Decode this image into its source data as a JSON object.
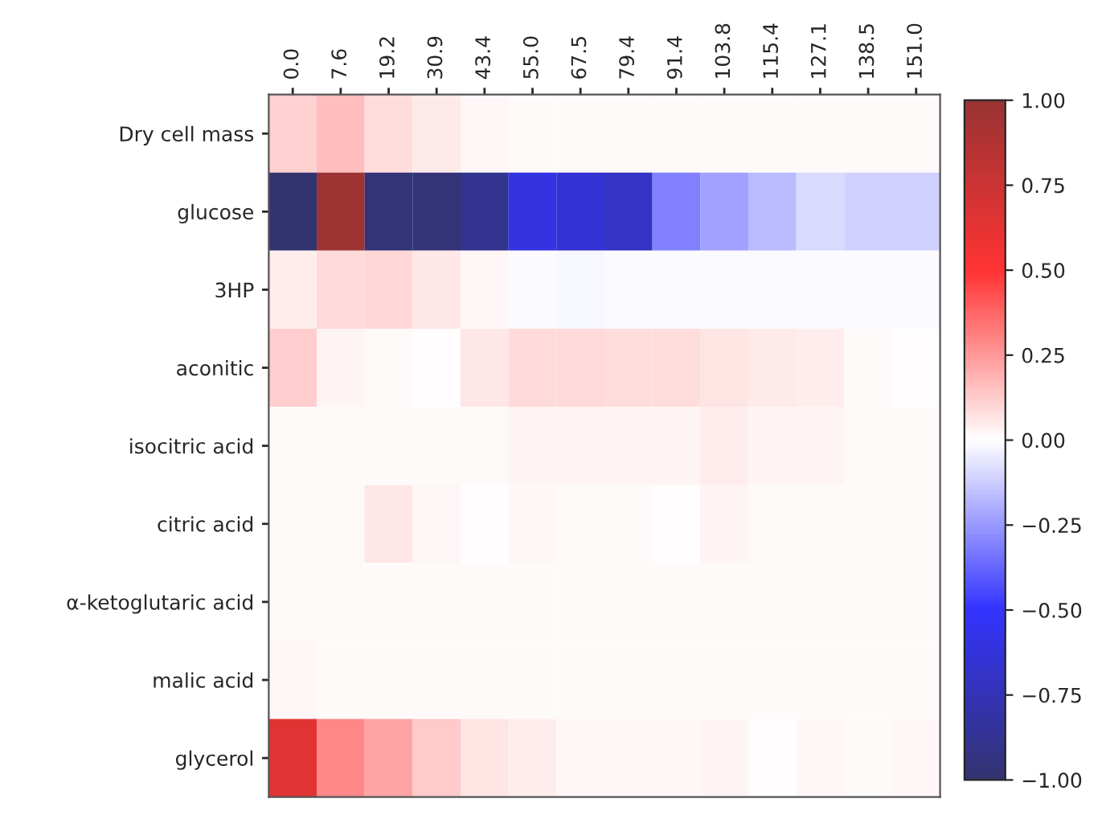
{
  "chart_data": {
    "type": "heatmap",
    "categories": [
      "0.0",
      "7.6",
      "19.2",
      "30.9",
      "43.4",
      "55.0",
      "67.5",
      "79.4",
      "91.4",
      "103.8",
      "115.4",
      "127.1",
      "138.5",
      "151.0"
    ],
    "y_categories": [
      "Dry cell mass",
      "glucose",
      "3HP",
      "aconitic",
      "isocitric acid",
      "citric acid",
      "α-ketoglutaric acid",
      "malic acid",
      "glycerol"
    ],
    "cells": [
      [
        0.11,
        0.16,
        0.08,
        0.05,
        0.02,
        0.01,
        0.01,
        0.01,
        0.01,
        0.01,
        0.01,
        0.01,
        0.01,
        0.01
      ],
      [
        -1.0,
        0.97,
        -0.97,
        -0.97,
        -0.89,
        -0.6,
        -0.65,
        -0.7,
        -0.31,
        -0.23,
        -0.17,
        -0.09,
        -0.11,
        -0.11
      ],
      [
        0.04,
        0.09,
        0.1,
        0.06,
        0.02,
        -0.01,
        -0.02,
        -0.01,
        -0.01,
        -0.01,
        -0.01,
        -0.01,
        -0.01,
        -0.01
      ],
      [
        0.12,
        0.03,
        0.01,
        0.0,
        0.06,
        0.09,
        0.09,
        0.08,
        0.08,
        0.07,
        0.05,
        0.04,
        0.01,
        0.0
      ],
      [
        0.01,
        0.01,
        0.01,
        0.01,
        0.01,
        0.03,
        0.03,
        0.03,
        0.03,
        0.04,
        0.03,
        0.03,
        0.01,
        0.01
      ],
      [
        0.01,
        0.01,
        0.06,
        0.02,
        0.0,
        0.02,
        0.01,
        0.01,
        0.0,
        0.03,
        0.01,
        0.01,
        0.01,
        0.01
      ],
      [
        0.01,
        0.01,
        0.01,
        0.01,
        0.01,
        0.01,
        0.01,
        0.01,
        0.01,
        0.01,
        0.01,
        0.01,
        0.01,
        0.01
      ],
      [
        0.02,
        0.01,
        0.01,
        0.01,
        0.01,
        0.01,
        0.01,
        0.01,
        0.01,
        0.01,
        0.01,
        0.01,
        0.01,
        0.01
      ],
      [
        0.65,
        0.29,
        0.22,
        0.13,
        0.07,
        0.04,
        0.02,
        0.02,
        0.02,
        0.03,
        0.0,
        0.02,
        0.01,
        0.02
      ]
    ],
    "clim": [
      -1,
      1
    ],
    "cticks": [
      {
        "value": 1,
        "label": "1.00"
      },
      {
        "value": 0.75,
        "label": "0.75"
      },
      {
        "value": 0.5,
        "label": "0.50"
      },
      {
        "value": 0.25,
        "label": "0.25"
      },
      {
        "value": 0,
        "label": "0.00"
      },
      {
        "value": -0.25,
        "label": "−0.25"
      },
      {
        "value": -0.5,
        "label": "−0.50"
      },
      {
        "value": -0.75,
        "label": "−0.75"
      },
      {
        "value": -1,
        "label": "−1.00"
      }
    ]
  }
}
